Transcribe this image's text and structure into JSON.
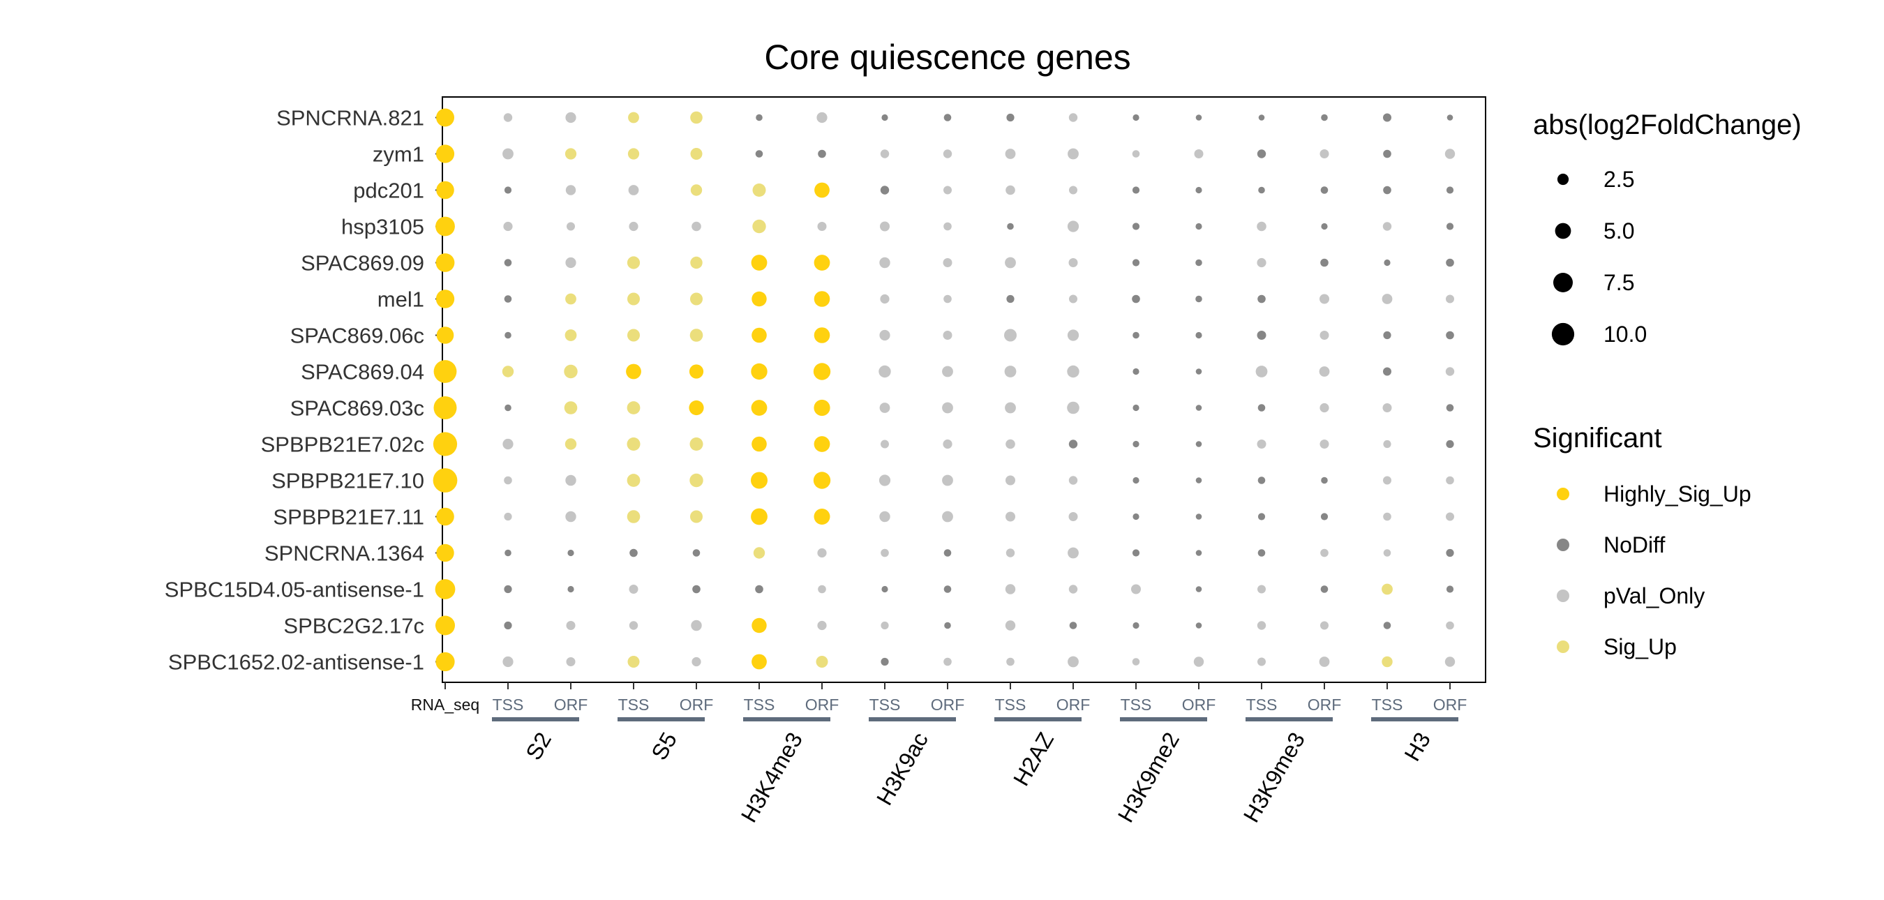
{
  "chart_data": {
    "type": "scatter",
    "title": "Core quiescence genes",
    "genes": [
      "SPNCRNA.821",
      "zym1",
      "pdc201",
      "hsp3105",
      "SPAC869.09",
      "mel1",
      "SPAC869.06c",
      "SPAC869.04",
      "SPAC869.03c",
      "SPBPB21E7.02c",
      "SPBPB21E7.10",
      "SPBPB21E7.11",
      "SPNCRNA.1364",
      "SPBC15D4.05-antisense-1",
      "SPBC2G2.17c",
      "SPBC1652.02-antisense-1"
    ],
    "columns": [
      "RNA_seq",
      "TSS",
      "ORF",
      "TSS",
      "ORF",
      "TSS",
      "ORF",
      "TSS",
      "ORF",
      "TSS",
      "ORF",
      "TSS",
      "ORF",
      "TSS",
      "ORF",
      "TSS",
      "ORF"
    ],
    "groups": [
      {
        "name": "S2",
        "columns": [
          1,
          2
        ]
      },
      {
        "name": "S5",
        "columns": [
          3,
          4
        ]
      },
      {
        "name": "H3K4me3",
        "columns": [
          5,
          6
        ]
      },
      {
        "name": "H3K9ac",
        "columns": [
          7,
          8
        ]
      },
      {
        "name": "H2AZ",
        "columns": [
          9,
          10
        ]
      },
      {
        "name": "H3K9me2",
        "columns": [
          11,
          12
        ]
      },
      {
        "name": "H3K9me3",
        "columns": [
          13,
          14
        ]
      },
      {
        "name": "H3",
        "columns": [
          15,
          16
        ]
      }
    ],
    "size": [
      [
        6.5,
        1.5,
        2.2,
        2.4,
        3.0,
        0.9,
        2.2,
        0.8,
        1.1,
        1.2,
        1.5,
        0.8,
        0.7,
        0.7,
        0.9,
        1.4,
        0.7
      ],
      [
        6.6,
        2.4,
        2.5,
        2.5,
        2.8,
        1.1,
        1.3,
        1.5,
        1.5,
        2.1,
        2.4,
        1.1,
        1.6,
        1.5,
        1.6,
        1.3,
        2.0
      ],
      [
        6.3,
        1.0,
        2.0,
        2.1,
        2.6,
        3.5,
        4.6,
        1.5,
        1.4,
        1.8,
        1.4,
        1.0,
        0.8,
        0.9,
        1.1,
        1.3,
        1.0
      ],
      [
        7.4,
        1.7,
        1.4,
        1.7,
        1.8,
        3.6,
        1.6,
        1.9,
        1.3,
        0.9,
        2.5,
        1.0,
        0.8,
        1.8,
        0.8,
        1.5,
        1.0
      ],
      [
        6.9,
        1.1,
        2.2,
        3.2,
        2.9,
        5.0,
        5.0,
        2.3,
        1.6,
        2.4,
        1.6,
        1.0,
        0.9,
        1.7,
        1.3,
        0.8,
        1.3
      ],
      [
        6.7,
        1.1,
        2.4,
        3.1,
        3.1,
        4.4,
        4.9,
        1.7,
        1.3,
        1.2,
        1.4,
        1.3,
        0.9,
        1.3,
        1.9,
        2.1,
        1.4
      ],
      [
        5.8,
        0.9,
        2.7,
        3.1,
        3.3,
        4.5,
        4.9,
        2.2,
        1.6,
        3.1,
        2.5,
        0.9,
        0.8,
        1.6,
        1.6,
        1.2,
        1.3
      ],
      [
        10.3,
        2.6,
        3.6,
        4.6,
        3.9,
        5.3,
        5.7,
        2.9,
        2.4,
        2.7,
        2.9,
        0.8,
        0.7,
        2.7,
        2.1,
        1.4,
        1.5
      ],
      [
        10.5,
        0.9,
        3.3,
        3.4,
        4.3,
        5.0,
        5.2,
        2.1,
        2.4,
        2.4,
        3.0,
        0.8,
        0.7,
        1.1,
        1.7,
        1.6,
        1.1
      ],
      [
        11.2,
        2.2,
        2.6,
        3.5,
        3.5,
        4.5,
        5.0,
        1.4,
        1.7,
        1.8,
        1.5,
        0.8,
        0.7,
        1.6,
        1.6,
        1.2,
        1.2
      ],
      [
        11.6,
        1.3,
        2.3,
        3.4,
        3.6,
        5.5,
        5.7,
        2.5,
        2.4,
        1.9,
        1.5,
        0.8,
        0.7,
        1.1,
        0.9,
        1.4,
        1.3
      ],
      [
        6.3,
        1.2,
        2.3,
        3.3,
        3.1,
        5.4,
        5.1,
        2.3,
        2.4,
        1.9,
        1.6,
        0.8,
        0.7,
        1.0,
        1.0,
        1.3,
        1.4
      ],
      [
        6.2,
        0.9,
        0.8,
        1.3,
        1.1,
        2.6,
        1.7,
        1.3,
        1.1,
        1.5,
        2.4,
        1.0,
        0.7,
        1.1,
        1.3,
        1.1,
        1.2
      ],
      [
        8.0,
        1.2,
        0.8,
        1.6,
        1.3,
        1.3,
        1.3,
        0.8,
        1.1,
        2.0,
        1.5,
        1.9,
        0.7,
        1.4,
        1.1,
        2.4,
        1.0
      ],
      [
        7.5,
        1.2,
        1.6,
        1.5,
        2.3,
        4.4,
        1.7,
        1.2,
        0.9,
        2.0,
        1.1,
        0.8,
        0.7,
        1.5,
        1.4,
        1.1,
        1.3
      ],
      [
        7.1,
        2.2,
        1.6,
        2.8,
        1.7,
        4.6,
        2.8,
        1.2,
        1.3,
        1.3,
        2.4,
        1.1,
        2.0,
        1.4,
        2.1,
        2.3,
        2.0
      ]
    ],
    "significance": [
      [
        "Highly_Sig_Up",
        "pVal_Only",
        "pVal_Only",
        "Sig_Up",
        "Sig_Up",
        "NoDiff",
        "pVal_Only",
        "NoDiff",
        "NoDiff",
        "NoDiff",
        "pVal_Only",
        "NoDiff",
        "NoDiff",
        "NoDiff",
        "NoDiff",
        "NoDiff",
        "NoDiff"
      ],
      [
        "Highly_Sig_Up",
        "pVal_Only",
        "Sig_Up",
        "Sig_Up",
        "Sig_Up",
        "NoDiff",
        "NoDiff",
        "pVal_Only",
        "pVal_Only",
        "pVal_Only",
        "pVal_Only",
        "pVal_Only",
        "pVal_Only",
        "NoDiff",
        "pVal_Only",
        "NoDiff",
        "pVal_Only"
      ],
      [
        "Highly_Sig_Up",
        "NoDiff",
        "pVal_Only",
        "pVal_Only",
        "Sig_Up",
        "Sig_Up",
        "Highly_Sig_Up",
        "NoDiff",
        "pVal_Only",
        "pVal_Only",
        "pVal_Only",
        "NoDiff",
        "NoDiff",
        "NoDiff",
        "NoDiff",
        "NoDiff",
        "NoDiff"
      ],
      [
        "Highly_Sig_Up",
        "pVal_Only",
        "pVal_Only",
        "pVal_Only",
        "pVal_Only",
        "Sig_Up",
        "pVal_Only",
        "pVal_Only",
        "pVal_Only",
        "NoDiff",
        "pVal_Only",
        "NoDiff",
        "NoDiff",
        "pVal_Only",
        "NoDiff",
        "pVal_Only",
        "NoDiff"
      ],
      [
        "Highly_Sig_Up",
        "NoDiff",
        "pVal_Only",
        "Sig_Up",
        "Sig_Up",
        "Highly_Sig_Up",
        "Highly_Sig_Up",
        "pVal_Only",
        "pVal_Only",
        "pVal_Only",
        "pVal_Only",
        "NoDiff",
        "NoDiff",
        "pVal_Only",
        "NoDiff",
        "NoDiff",
        "NoDiff"
      ],
      [
        "Highly_Sig_Up",
        "NoDiff",
        "Sig_Up",
        "Sig_Up",
        "Sig_Up",
        "Highly_Sig_Up",
        "Highly_Sig_Up",
        "pVal_Only",
        "pVal_Only",
        "NoDiff",
        "pVal_Only",
        "NoDiff",
        "NoDiff",
        "NoDiff",
        "pVal_Only",
        "pVal_Only",
        "pVal_Only"
      ],
      [
        "Highly_Sig_Up",
        "NoDiff",
        "Sig_Up",
        "Sig_Up",
        "Sig_Up",
        "Highly_Sig_Up",
        "Highly_Sig_Up",
        "pVal_Only",
        "pVal_Only",
        "pVal_Only",
        "pVal_Only",
        "NoDiff",
        "NoDiff",
        "NoDiff",
        "pVal_Only",
        "NoDiff",
        "NoDiff"
      ],
      [
        "Highly_Sig_Up",
        "Sig_Up",
        "Sig_Up",
        "Highly_Sig_Up",
        "Highly_Sig_Up",
        "Highly_Sig_Up",
        "Highly_Sig_Up",
        "pVal_Only",
        "pVal_Only",
        "pVal_Only",
        "pVal_Only",
        "NoDiff",
        "NoDiff",
        "pVal_Only",
        "pVal_Only",
        "NoDiff",
        "pVal_Only"
      ],
      [
        "Highly_Sig_Up",
        "NoDiff",
        "Sig_Up",
        "Sig_Up",
        "Highly_Sig_Up",
        "Highly_Sig_Up",
        "Highly_Sig_Up",
        "pVal_Only",
        "pVal_Only",
        "pVal_Only",
        "pVal_Only",
        "NoDiff",
        "NoDiff",
        "NoDiff",
        "pVal_Only",
        "pVal_Only",
        "NoDiff"
      ],
      [
        "Highly_Sig_Up",
        "pVal_Only",
        "Sig_Up",
        "Sig_Up",
        "Sig_Up",
        "Highly_Sig_Up",
        "Highly_Sig_Up",
        "pVal_Only",
        "pVal_Only",
        "pVal_Only",
        "NoDiff",
        "NoDiff",
        "NoDiff",
        "pVal_Only",
        "pVal_Only",
        "pVal_Only",
        "NoDiff"
      ],
      [
        "Highly_Sig_Up",
        "pVal_Only",
        "pVal_Only",
        "Sig_Up",
        "Sig_Up",
        "Highly_Sig_Up",
        "Highly_Sig_Up",
        "pVal_Only",
        "pVal_Only",
        "pVal_Only",
        "pVal_Only",
        "NoDiff",
        "NoDiff",
        "NoDiff",
        "NoDiff",
        "pVal_Only",
        "pVal_Only"
      ],
      [
        "Highly_Sig_Up",
        "pVal_Only",
        "pVal_Only",
        "Sig_Up",
        "Sig_Up",
        "Highly_Sig_Up",
        "Highly_Sig_Up",
        "pVal_Only",
        "pVal_Only",
        "pVal_Only",
        "pVal_Only",
        "NoDiff",
        "NoDiff",
        "NoDiff",
        "NoDiff",
        "pVal_Only",
        "pVal_Only"
      ],
      [
        "Highly_Sig_Up",
        "NoDiff",
        "NoDiff",
        "NoDiff",
        "NoDiff",
        "Sig_Up",
        "pVal_Only",
        "pVal_Only",
        "NoDiff",
        "pVal_Only",
        "pVal_Only",
        "NoDiff",
        "NoDiff",
        "NoDiff",
        "pVal_Only",
        "pVal_Only",
        "NoDiff"
      ],
      [
        "Highly_Sig_Up",
        "NoDiff",
        "NoDiff",
        "pVal_Only",
        "NoDiff",
        "NoDiff",
        "pVal_Only",
        "NoDiff",
        "NoDiff",
        "pVal_Only",
        "pVal_Only",
        "pVal_Only",
        "NoDiff",
        "pVal_Only",
        "NoDiff",
        "Sig_Up",
        "NoDiff"
      ],
      [
        "Highly_Sig_Up",
        "NoDiff",
        "pVal_Only",
        "pVal_Only",
        "pVal_Only",
        "Highly_Sig_Up",
        "pVal_Only",
        "pVal_Only",
        "NoDiff",
        "pVal_Only",
        "NoDiff",
        "NoDiff",
        "NoDiff",
        "pVal_Only",
        "pVal_Only",
        "NoDiff",
        "pVal_Only"
      ],
      [
        "Highly_Sig_Up",
        "pVal_Only",
        "pVal_Only",
        "Sig_Up",
        "pVal_Only",
        "Highly_Sig_Up",
        "Sig_Up",
        "NoDiff",
        "pVal_Only",
        "pVal_Only",
        "pVal_Only",
        "pVal_Only",
        "pVal_Only",
        "pVal_Only",
        "pVal_Only",
        "Sig_Up",
        "pVal_Only"
      ]
    ],
    "legend": {
      "size_title": "abs(log2FoldChange)",
      "size_breaks": [
        2.5,
        5.0,
        7.5,
        10.0
      ],
      "size_labels": [
        "2.5",
        "5.0",
        "7.5",
        "10.0"
      ],
      "color_title": "Significant",
      "categories": [
        "Highly_Sig_Up",
        "NoDiff",
        "pVal_Only",
        "Sig_Up"
      ],
      "placement": "right"
    },
    "colors": {
      "Highly_Sig_Up": "#FFD10F",
      "NoDiff": "#868686",
      "pVal_Only": "#C4C4C4",
      "Sig_Up": "#EBDE7C",
      "group_bar": "#5E6B7C",
      "subcolumn_label": "#5E6B7C"
    }
  }
}
